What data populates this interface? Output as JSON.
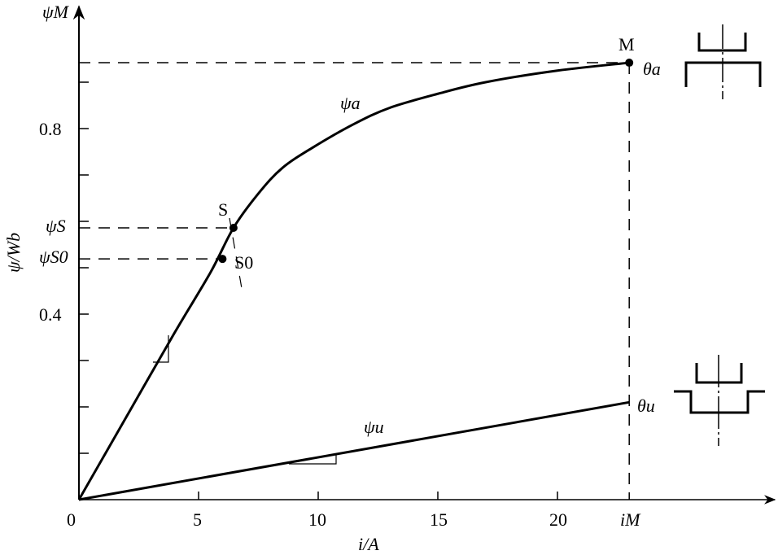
{
  "chart_data": {
    "type": "line",
    "xlabel": "i/A",
    "ylabel": "ψ/Wb",
    "x_ticks": [
      "0",
      "5",
      "10",
      "15",
      "20"
    ],
    "x_tick_values": [
      0,
      5,
      10,
      15,
      20
    ],
    "y_ticks": [
      "0.4",
      "0.8"
    ],
    "y_tick_values": [
      0.4,
      0.8
    ],
    "y_minor_ticks": [
      0.1,
      0.2,
      0.3,
      0.4,
      0.5,
      0.6,
      0.7,
      0.8,
      0.9
    ],
    "xlim": [
      0,
      29
    ],
    "ylim": [
      0,
      1.06
    ],
    "series": [
      {
        "name": "ψa",
        "points": [
          [
            0,
            0
          ],
          [
            2,
            0.18
          ],
          [
            4,
            0.36
          ],
          [
            5.5,
            0.49
          ],
          [
            6.46,
            0.586
          ],
          [
            7.5,
            0.66
          ],
          [
            8.5,
            0.715
          ],
          [
            9.8,
            0.76
          ],
          [
            11.5,
            0.81
          ],
          [
            13,
            0.845
          ],
          [
            15,
            0.875
          ],
          [
            17,
            0.9
          ],
          [
            20,
            0.925
          ],
          [
            23,
            0.942
          ]
        ]
      },
      {
        "name": "ψu",
        "points": [
          [
            0,
            0
          ],
          [
            23,
            0.21
          ]
        ]
      }
    ],
    "points": [
      {
        "label": "M",
        "i": 23,
        "psi": 0.942
      },
      {
        "label": "S",
        "i": 6.46,
        "psi": 0.586
      },
      {
        "label": "S0",
        "i": 6.0,
        "psi": 0.519
      }
    ],
    "annotations": {
      "psi_M": "ψM",
      "psi_S": "ψS",
      "psi_S0": "ψS0",
      "i_M": "iM",
      "theta_a": "θa",
      "theta_u": "θu",
      "curve_a": "ψa",
      "curve_u": "ψu",
      "M": "M",
      "S": "S",
      "S0": "S0"
    }
  }
}
